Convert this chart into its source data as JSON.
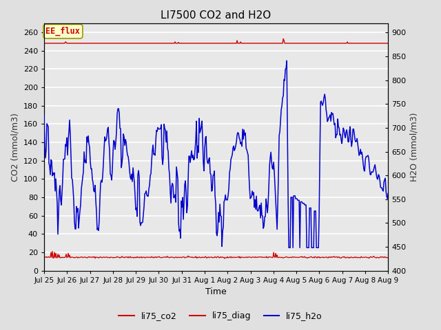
{
  "title": "LI7500 CO2 and H2O",
  "xlabel": "Time",
  "ylabel_left": "CO2 (mmol/m3)",
  "ylabel_right": "H2O (mmol/m3)",
  "ylim_left": [
    0,
    270
  ],
  "ylim_right": [
    400,
    920
  ],
  "yticks_left": [
    0,
    20,
    40,
    60,
    80,
    100,
    120,
    140,
    160,
    180,
    200,
    220,
    240,
    260
  ],
  "yticks_right": [
    400,
    450,
    500,
    550,
    600,
    650,
    700,
    750,
    800,
    850,
    900
  ],
  "bg_color": "#e0e0e0",
  "plot_bg_color": "#e8e8e8",
  "annotation_text": "EE_flux",
  "annotation_bg": "#ffffcc",
  "annotation_border": "#999900",
  "legend_entries": [
    "li75_co2",
    "li75_diag",
    "li75_h2o"
  ],
  "co2_color": "#cc0000",
  "diag_color": "#cc0000",
  "h2o_color": "#0000cc",
  "num_points": 500,
  "seed": 42,
  "tick_labels": [
    "Jul 25",
    "Jul 26",
    "Jul 27",
    "Jul 28",
    "Jul 29",
    "Jul 30",
    "Jul 31",
    "Aug 1",
    "Aug 2",
    "Aug 3",
    "Aug 4",
    "Aug 5",
    "Aug 6",
    "Aug 7",
    "Aug 8",
    "Aug 9"
  ]
}
